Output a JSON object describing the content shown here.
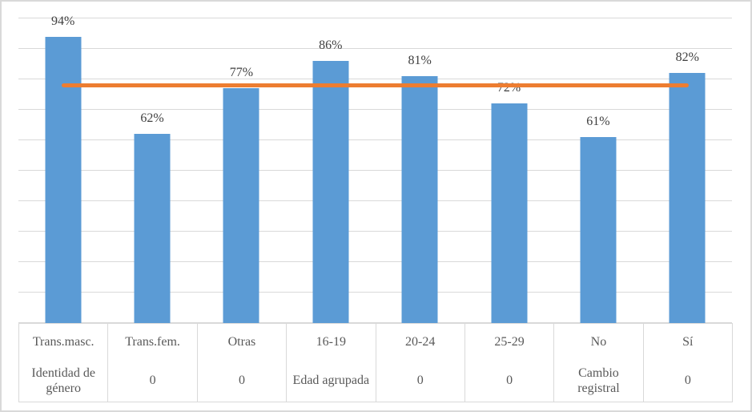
{
  "chart_data": {
    "type": "bar",
    "title": "",
    "xlabel": "",
    "ylabel": "",
    "categories": [
      "Trans.masc.",
      "Trans.fem.",
      "Otras",
      "16-19",
      "20-24",
      "25-29",
      "No",
      "Sí"
    ],
    "group_labels": [
      "Identidad de género",
      "0",
      "0",
      "Edad agrupada",
      "0",
      "0",
      "Cambio registral",
      "0"
    ],
    "values": [
      94,
      62,
      77,
      86,
      81,
      72,
      61,
      82
    ],
    "value_labels": [
      "94%",
      "62%",
      "77%",
      "86%",
      "81%",
      "72%",
      "61%",
      "82%"
    ],
    "ylim": [
      0,
      100
    ],
    "gridline_step": 10,
    "grid": "on",
    "legend_position": "none",
    "y_axis_tick_labels_visible": false,
    "reference_line": {
      "value": 78,
      "label": "",
      "color": "#ED7D31",
      "span": "first-bar-center-to-last-bar-center"
    }
  },
  "colors": {
    "bar": "#5B9BD5",
    "reference_line": "#ED7D31",
    "gridline": "#D9D9D9",
    "border": "#D9D9D9",
    "value_label_text": "#404040",
    "axis_text": "#595959",
    "background": "#FFFFFF"
  }
}
